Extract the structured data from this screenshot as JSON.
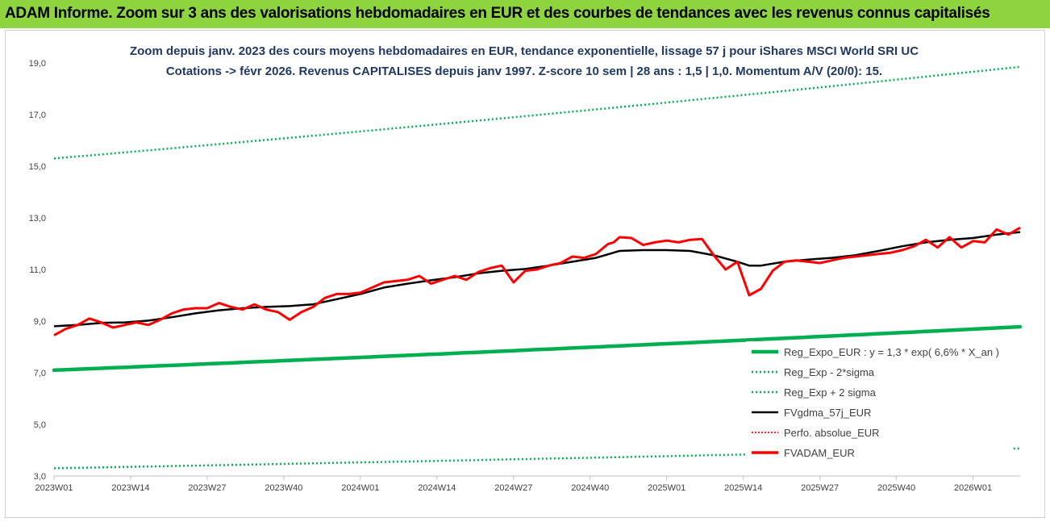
{
  "header": {
    "title": "ADAM Informe. Zoom sur 3 ans des valorisations hebdomadaires en EUR et des courbes de tendances avec les revenus connus capitalisés"
  },
  "chart_data": {
    "type": "line",
    "title_lines": [
      "Zoom depuis janv. 2023 des cours moyens hebdomadaires en EUR, tendance exponentielle, lissage 57 j pour iShares MSCI World SRI UC",
      "Cotations -> févr 2026. Revenus CAPITALISES depuis janv 1997. Z-score 10 sem | 28 ans : 1,5 | 1,0. Momentum A/V (20/0): 15."
    ],
    "x_tick_labels": [
      "2023W01",
      "2023W14",
      "2023W27",
      "2023W40",
      "2024W01",
      "2024W14",
      "2024W27",
      "2024W40",
      "2025W01",
      "2025W14",
      "2025W27",
      "2025W40",
      "2026W01"
    ],
    "x_tick_index": [
      0,
      13,
      26,
      39,
      52,
      65,
      78,
      91,
      104,
      117,
      130,
      143,
      156
    ],
    "x_range": [
      0,
      164
    ],
    "y_tick_labels": [
      "3,0",
      "5,0",
      "7,0",
      "9,0",
      "11,0",
      "13,0",
      "15,0",
      "17,0",
      "19,0"
    ],
    "y_ticks": [
      3,
      5,
      7,
      9,
      11,
      13,
      15,
      17,
      19
    ],
    "ylim": [
      3,
      19
    ],
    "grid": false,
    "legend_position": "bottom-right",
    "colors": {
      "reg": "#00b050",
      "band": "#00b050",
      "ma": "#000000",
      "perf": "#ff0000",
      "price": "#ff0000"
    },
    "series": [
      {
        "name": "Reg_Expo_EUR : y = 1,3 * exp( 6,6% *  X_an )",
        "key": "reg",
        "style": "thick",
        "x": [
          0,
          164
        ],
        "y": [
          7.1,
          8.78
        ]
      },
      {
        "name": "Reg_Exp - 2*sigma",
        "key": "lower",
        "style": "dotted",
        "x": [
          0,
          164
        ],
        "y": [
          3.3,
          4.07
        ]
      },
      {
        "name": "Reg_Exp + 2 sigma",
        "key": "upper",
        "style": "dotted",
        "x": [
          0,
          164
        ],
        "y": [
          15.3,
          18.85
        ]
      },
      {
        "name": "FVgdma_57j_EUR",
        "key": "ma",
        "style": "line",
        "x": [
          0,
          4,
          8,
          12,
          16,
          20,
          24,
          28,
          32,
          36,
          40,
          44,
          48,
          52,
          56,
          60,
          64,
          68,
          72,
          76,
          80,
          84,
          88,
          92,
          96,
          100,
          104,
          108,
          112,
          116,
          118,
          120,
          124,
          128,
          132,
          136,
          140,
          144,
          148,
          152,
          156,
          160,
          164
        ],
        "y": [
          8.8,
          8.85,
          8.93,
          8.95,
          9.02,
          9.15,
          9.3,
          9.42,
          9.5,
          9.55,
          9.58,
          9.65,
          9.85,
          10.05,
          10.3,
          10.45,
          10.58,
          10.7,
          10.85,
          10.95,
          11.02,
          11.15,
          11.3,
          11.45,
          11.72,
          11.75,
          11.75,
          11.72,
          11.55,
          11.3,
          11.15,
          11.15,
          11.3,
          11.38,
          11.45,
          11.55,
          11.72,
          11.9,
          12.05,
          12.15,
          12.22,
          12.35,
          12.45
        ]
      },
      {
        "name": "Perfo. absolue_EUR",
        "key": "perf",
        "style": "dotted",
        "x": [],
        "y": []
      },
      {
        "name": "FVADAM_EUR",
        "key": "price",
        "style": "thick",
        "x": [
          0,
          2,
          4,
          6,
          8,
          10,
          12,
          14,
          16,
          18,
          20,
          22,
          24,
          26,
          28,
          30,
          32,
          34,
          36,
          38,
          40,
          42,
          44,
          46,
          48,
          50,
          52,
          54,
          56,
          58,
          60,
          62,
          64,
          66,
          68,
          70,
          72,
          74,
          76,
          78,
          80,
          82,
          84,
          86,
          88,
          90,
          92,
          94,
          95,
          96,
          98,
          100,
          102,
          104,
          106,
          108,
          110,
          112,
          114,
          116,
          118,
          120,
          122,
          124,
          126,
          128,
          130,
          132,
          134,
          136,
          138,
          140,
          142,
          144,
          146,
          148,
          150,
          152,
          154,
          156,
          158,
          160,
          162,
          164
        ],
        "y": [
          8.45,
          8.7,
          8.85,
          9.1,
          8.95,
          8.75,
          8.85,
          8.95,
          8.85,
          9.05,
          9.3,
          9.45,
          9.5,
          9.5,
          9.7,
          9.55,
          9.45,
          9.65,
          9.45,
          9.35,
          9.05,
          9.35,
          9.55,
          9.9,
          10.05,
          10.05,
          10.1,
          10.3,
          10.5,
          10.55,
          10.6,
          10.75,
          10.45,
          10.6,
          10.75,
          10.6,
          10.9,
          11.05,
          11.15,
          10.5,
          10.95,
          11.0,
          11.15,
          11.25,
          11.5,
          11.45,
          11.6,
          11.98,
          12.05,
          12.25,
          12.22,
          11.95,
          12.05,
          12.12,
          12.05,
          12.15,
          12.18,
          11.55,
          11.0,
          11.3,
          10.0,
          10.25,
          10.95,
          11.3,
          11.35,
          11.3,
          11.25,
          11.35,
          11.45,
          11.5,
          11.55,
          11.6,
          11.65,
          11.75,
          11.9,
          12.15,
          11.85,
          12.25,
          11.85,
          12.1,
          12.05,
          12.55,
          12.35,
          12.62
        ]
      }
    ]
  }
}
